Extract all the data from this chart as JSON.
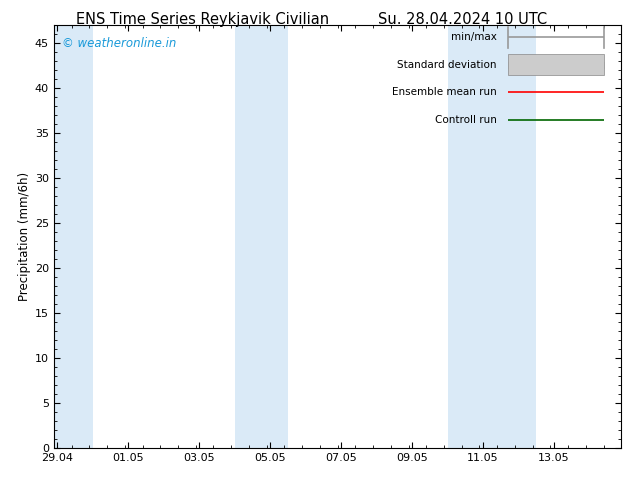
{
  "title_left": "ENS Time Series Reykjavik Civilian",
  "title_right": "Su. 28.04.2024 10 UTC",
  "ylabel": "Precipitation (mm/6h)",
  "ylim": [
    0,
    47
  ],
  "yticks": [
    0,
    5,
    10,
    15,
    20,
    25,
    30,
    35,
    40,
    45
  ],
  "xtick_labels": [
    "29.04",
    "01.05",
    "03.05",
    "05.05",
    "07.05",
    "09.05",
    "11.05",
    "13.05"
  ],
  "xtick_positions": [
    0,
    2,
    4,
    6,
    8,
    10,
    12,
    14
  ],
  "num_days": 15.5,
  "shaded_bands": [
    [
      -0.1,
      1.0
    ],
    [
      5.0,
      6.5
    ],
    [
      11.0,
      12.0
    ],
    [
      12.0,
      13.5
    ]
  ],
  "band_color": "#daeaf7",
  "background_color": "#ffffff",
  "axes_bg_color": "#ffffff",
  "watermark_text": "© weatheronline.in",
  "watermark_color": "#1a9ad9",
  "legend_items": [
    {
      "label": "min/max",
      "color": "#999999",
      "lw": 1.2
    },
    {
      "label": "Standard deviation",
      "color": "#cccccc",
      "lw": 5
    },
    {
      "label": "Ensemble mean run",
      "color": "#ff0000",
      "lw": 1.2
    },
    {
      "label": "Controll run",
      "color": "#006600",
      "lw": 1.2
    }
  ],
  "title_fontsize": 10.5,
  "tick_fontsize": 8,
  "ylabel_fontsize": 8.5,
  "legend_fontsize": 7.5
}
